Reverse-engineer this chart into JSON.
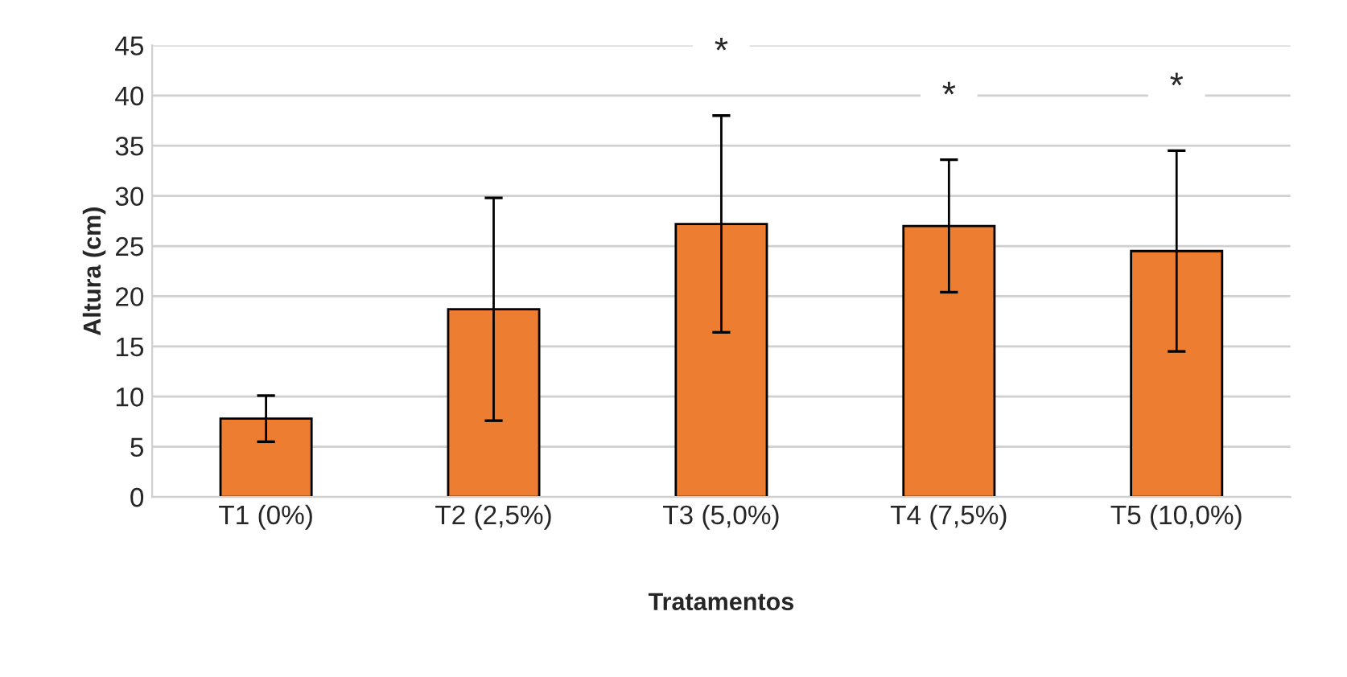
{
  "chart_data": {
    "type": "bar",
    "xlabel": "Tratamentos",
    "ylabel": "Altura (cm)",
    "categories": [
      "T1 (0%)",
      "T2 (2,5%)",
      "T3 (5,0%)",
      "T4 (7,5%)",
      "T5 (10,0%)"
    ],
    "values": [
      7.8,
      18.7,
      27.2,
      27.0,
      24.5
    ],
    "errors": [
      2.3,
      11.1,
      10.8,
      6.6,
      10.0
    ],
    "color": "#ed7d31",
    "ylim": [
      0,
      45
    ],
    "yticks": [
      0,
      5,
      10,
      15,
      20,
      25,
      30,
      35,
      40,
      45
    ],
    "grid": "y",
    "legend": false,
    "annotations": [
      "*",
      "*",
      "*"
    ]
  }
}
